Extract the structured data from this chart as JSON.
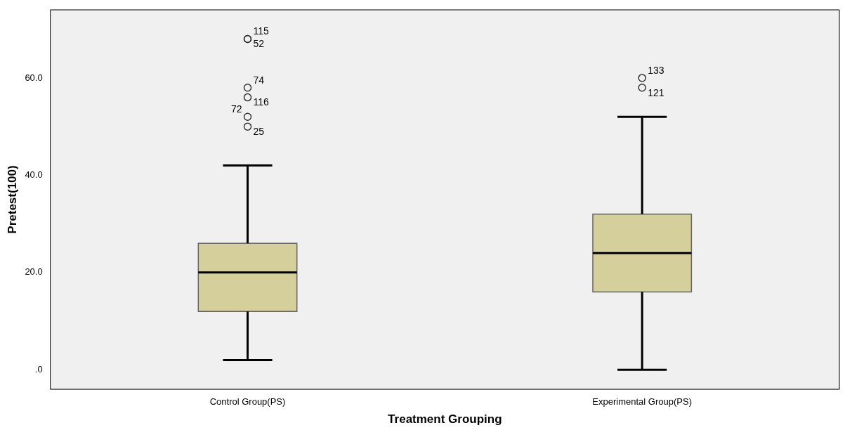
{
  "chart_data": {
    "type": "box",
    "xlabel": "Treatment Grouping",
    "ylabel": "Pretest(100)",
    "categories": [
      "Control Group(PS)",
      "Experimental Group(PS)"
    ],
    "series": [
      {
        "color": "#d4cf9b",
        "boxes": [
          {
            "low": 2,
            "q1": 12,
            "median": 20,
            "q3": 26,
            "high": 42,
            "outliers": [
              68,
              68,
              58,
              56,
              52,
              50
            ]
          },
          {
            "low": 0,
            "q1": 16,
            "median": 24,
            "q3": 32,
            "high": 52,
            "outliers": [
              60,
              58
            ]
          }
        ]
      }
    ],
    "ylim": [
      -4,
      74
    ],
    "yticks": [
      {
        "value": 0,
        "label": ".0"
      },
      {
        "value": 20,
        "label": "20.0"
      },
      {
        "value": 40,
        "label": "40.0"
      },
      {
        "value": 60,
        "label": "60.0"
      }
    ],
    "grid": false,
    "legend": false,
    "annotations": [
      "115",
      "52",
      "74",
      "116",
      "72",
      "25",
      "133",
      "121"
    ]
  }
}
